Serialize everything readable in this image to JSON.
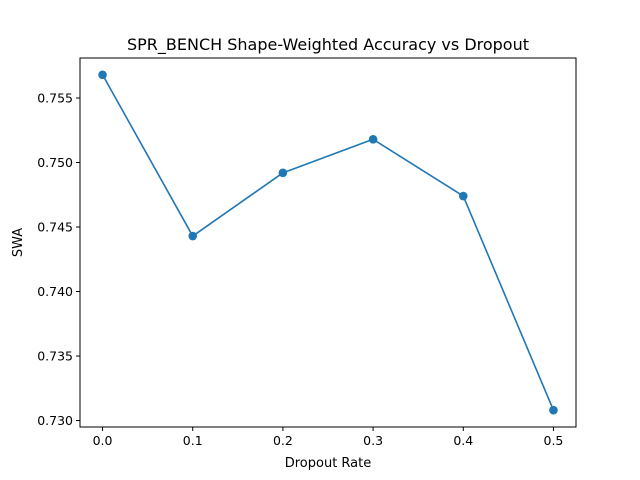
{
  "chart_data": {
    "type": "line",
    "title": "SPR_BENCH Shape-Weighted Accuracy vs Dropout",
    "xlabel": "Dropout Rate",
    "ylabel": "SWA",
    "x": [
      0.0,
      0.1,
      0.2,
      0.3,
      0.4,
      0.5
    ],
    "series": [
      {
        "values": [
          0.7568,
          0.7443,
          0.7492,
          0.7518,
          0.7474,
          0.7308
        ]
      }
    ],
    "xlim": [
      -0.025,
      0.525
    ],
    "ylim": [
      0.7295,
      0.7581
    ],
    "xticks": [
      0.0,
      0.1,
      0.2,
      0.3,
      0.4,
      0.5
    ],
    "xtick_labels": [
      "0.0",
      "0.1",
      "0.2",
      "0.3",
      "0.4",
      "0.5"
    ],
    "yticks": [
      0.73,
      0.735,
      0.74,
      0.745,
      0.75,
      0.755
    ],
    "ytick_labels": [
      "0.730",
      "0.735",
      "0.740",
      "0.745",
      "0.750",
      "0.755"
    ],
    "grid": false,
    "markers": true,
    "colors": {
      "line": "#1f77b4",
      "marker": "#1f77b4",
      "axes": "#000000",
      "background": "#ffffff"
    }
  }
}
